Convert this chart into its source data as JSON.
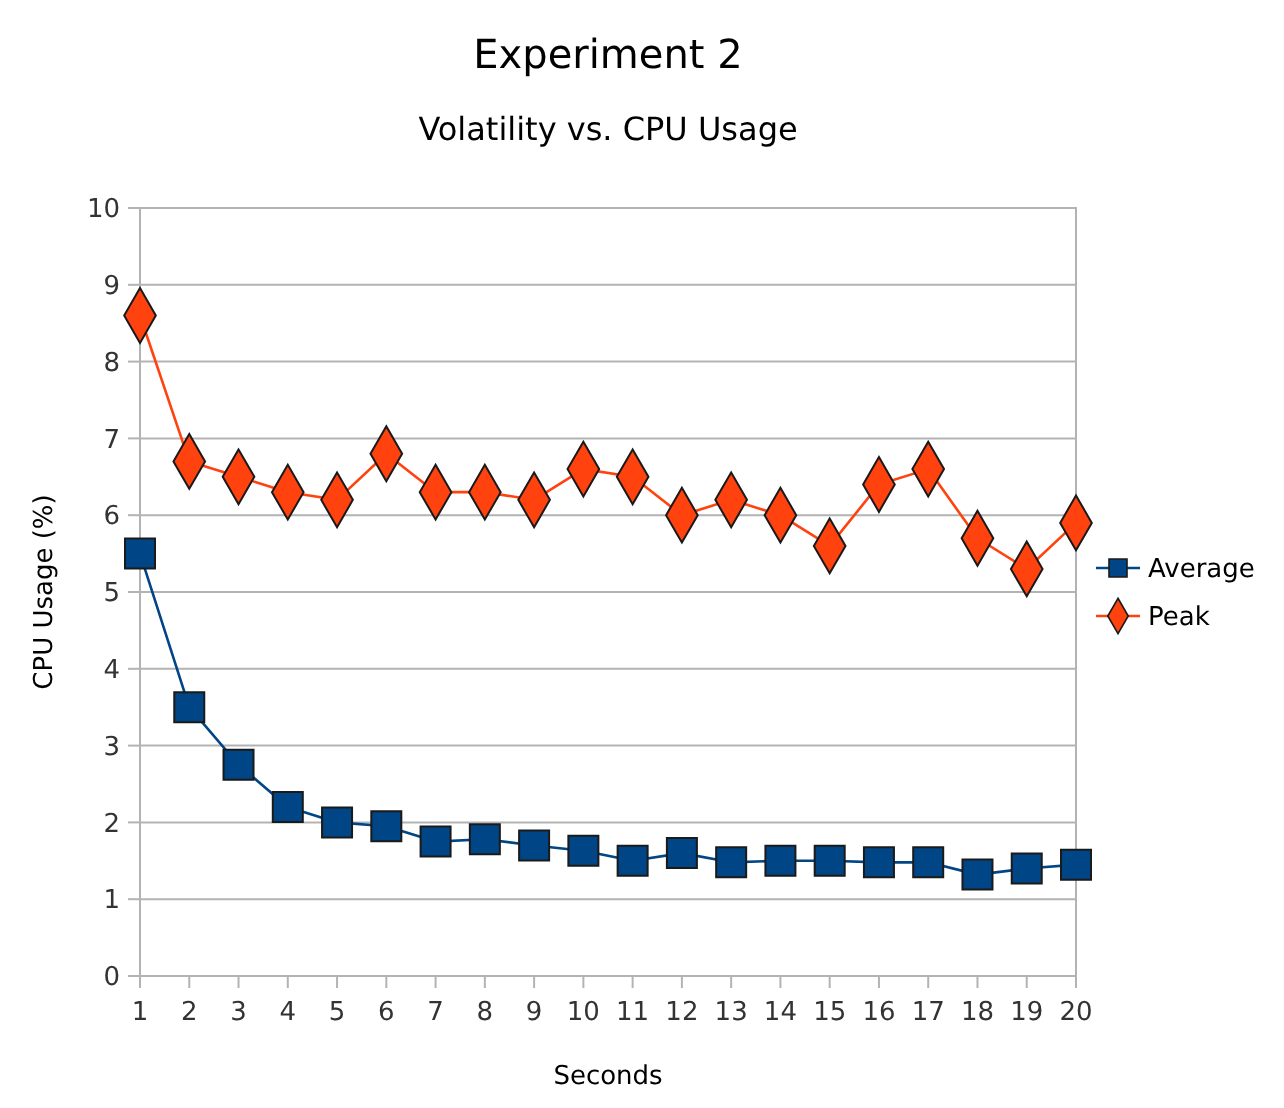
{
  "chart_data": {
    "type": "line",
    "title": "Experiment 2",
    "subtitle": "Volatility vs. CPU Usage",
    "xlabel": "Seconds",
    "ylabel": "CPU Usage (%)",
    "x": [
      1,
      2,
      3,
      4,
      5,
      6,
      7,
      8,
      9,
      10,
      11,
      12,
      13,
      14,
      15,
      16,
      17,
      18,
      19,
      20
    ],
    "xlim": [
      1,
      20
    ],
    "xticks": [
      1,
      2,
      3,
      4,
      5,
      6,
      7,
      8,
      9,
      10,
      11,
      12,
      13,
      14,
      15,
      16,
      17,
      18,
      19,
      20
    ],
    "ylim": [
      0,
      10
    ],
    "yticks": [
      0,
      1,
      2,
      3,
      4,
      5,
      6,
      7,
      8,
      9,
      10
    ],
    "grid": "y",
    "legend": "right",
    "series": [
      {
        "name": "Average",
        "color": "#004586",
        "marker": "square",
        "values": [
          5.5,
          3.5,
          2.75,
          2.2,
          2.0,
          1.95,
          1.75,
          1.78,
          1.7,
          1.63,
          1.5,
          1.6,
          1.48,
          1.5,
          1.5,
          1.48,
          1.48,
          1.32,
          1.4,
          1.45
        ]
      },
      {
        "name": "Peak",
        "color": "#ff420e",
        "marker": "diamond",
        "values": [
          8.6,
          6.7,
          6.5,
          6.3,
          6.2,
          6.8,
          6.3,
          6.3,
          6.2,
          6.6,
          6.5,
          6.0,
          6.2,
          6.0,
          5.6,
          6.4,
          6.6,
          5.7,
          5.3,
          5.9
        ]
      }
    ]
  }
}
